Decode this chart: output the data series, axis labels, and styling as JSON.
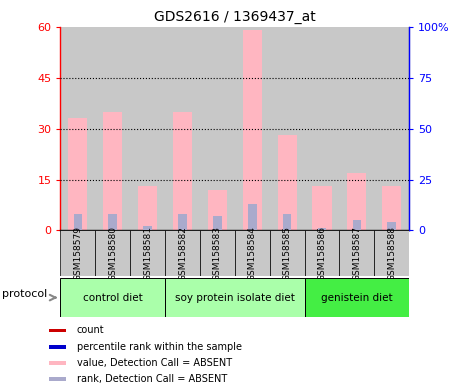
{
  "title": "GDS2616 / 1369437_at",
  "samples": [
    "GSM158579",
    "GSM158580",
    "GSM158581",
    "GSM158582",
    "GSM158583",
    "GSM158584",
    "GSM158585",
    "GSM158586",
    "GSM158587",
    "GSM158588"
  ],
  "value_absent": [
    33,
    35,
    13,
    35,
    12,
    59,
    28,
    13,
    17,
    13
  ],
  "rank_absent": [
    8,
    8,
    2,
    8,
    7,
    13,
    8,
    1,
    5,
    4
  ],
  "left_ylim": [
    0,
    60
  ],
  "right_ylim": [
    0,
    100
  ],
  "left_yticks": [
    0,
    15,
    30,
    45,
    60
  ],
  "right_yticks": [
    0,
    25,
    50,
    75,
    100
  ],
  "right_yticklabels": [
    "0",
    "25",
    "50",
    "75",
    "100%"
  ],
  "bar_width": 0.55,
  "rank_bar_width": 0.25,
  "value_absent_color": "#FFB6C1",
  "rank_absent_color": "#AAAACC",
  "bg_color": "#C8C8C8",
  "protocol_groups": [
    {
      "label": "control diet",
      "start": 0,
      "end": 2,
      "color": "#AAFFAA"
    },
    {
      "label": "soy protein isolate diet",
      "start": 3,
      "end": 6,
      "color": "#AAFFAA"
    },
    {
      "label": "genistein diet",
      "start": 7,
      "end": 9,
      "color": "#44EE44"
    }
  ],
  "protocol_label": "protocol",
  "legend_items": [
    {
      "label": "count",
      "color": "#CC0000"
    },
    {
      "label": "percentile rank within the sample",
      "color": "#0000CC"
    },
    {
      "label": "value, Detection Call = ABSENT",
      "color": "#FFB6C1"
    },
    {
      "label": "rank, Detection Call = ABSENT",
      "color": "#AAAACC"
    }
  ]
}
